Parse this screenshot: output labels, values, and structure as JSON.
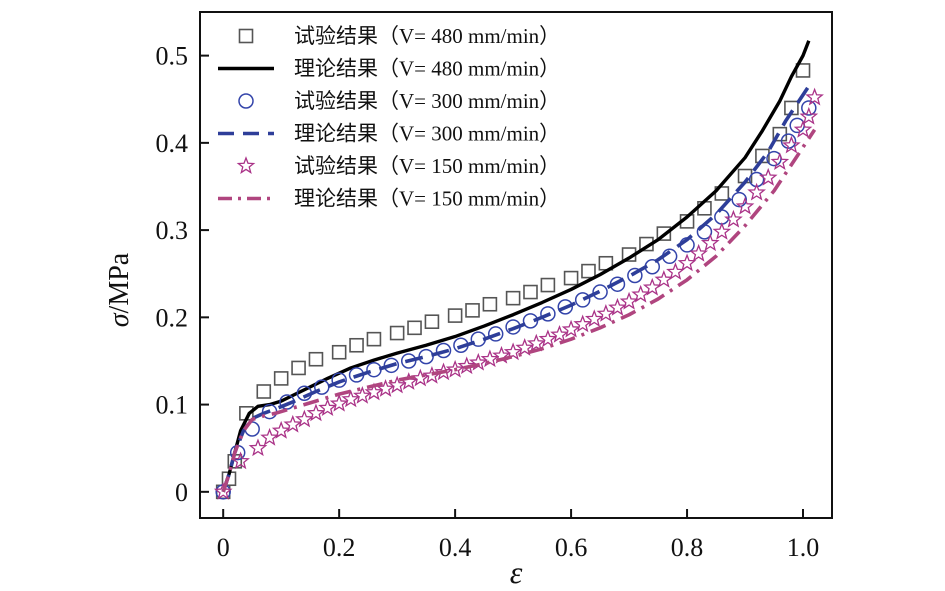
{
  "chart_data": {
    "type": "line",
    "xlabel": "ε",
    "ylabel_symbol": "σ",
    "ylabel_unit": "/MPa",
    "xlim": [
      -0.04,
      1.05
    ],
    "ylim": [
      -0.03,
      0.55
    ],
    "xticks": [
      0,
      0.2,
      0.4,
      0.6,
      0.8,
      1.0
    ],
    "xtick_labels": [
      "0",
      "0.2",
      "0.4",
      "0.6",
      "0.8",
      "1.0"
    ],
    "yticks": [
      0,
      0.1,
      0.2,
      0.3,
      0.4,
      0.5
    ],
    "ytick_labels": [
      "0",
      "0.1",
      "0.2",
      "0.3",
      "0.4",
      "0.5"
    ],
    "legend_position": "top-left",
    "series": [
      {
        "name": "试验结果（V= 480 mm/min）",
        "kind": "markers",
        "marker": "square",
        "color": "#555555",
        "x": [
          0.0,
          0.01,
          0.02,
          0.04,
          0.07,
          0.1,
          0.13,
          0.16,
          0.2,
          0.23,
          0.26,
          0.3,
          0.33,
          0.36,
          0.4,
          0.43,
          0.46,
          0.5,
          0.53,
          0.56,
          0.6,
          0.63,
          0.66,
          0.7,
          0.73,
          0.76,
          0.8,
          0.83,
          0.86,
          0.9,
          0.93,
          0.96,
          0.98,
          1.0
        ],
        "y": [
          0.0,
          0.015,
          0.035,
          0.09,
          0.115,
          0.13,
          0.142,
          0.152,
          0.16,
          0.168,
          0.175,
          0.182,
          0.188,
          0.195,
          0.202,
          0.208,
          0.215,
          0.222,
          0.229,
          0.237,
          0.245,
          0.253,
          0.262,
          0.272,
          0.284,
          0.296,
          0.31,
          0.325,
          0.342,
          0.362,
          0.385,
          0.41,
          0.44,
          0.483
        ]
      },
      {
        "name": "理论结果（V= 480 mm/min）",
        "kind": "line",
        "dash": "solid",
        "color": "#000000",
        "x": [
          0.0,
          0.01,
          0.02,
          0.03,
          0.045,
          0.06,
          0.08,
          0.1,
          0.14,
          0.18,
          0.22,
          0.26,
          0.3,
          0.35,
          0.4,
          0.45,
          0.5,
          0.55,
          0.6,
          0.65,
          0.7,
          0.75,
          0.8,
          0.85,
          0.9,
          0.93,
          0.96,
          0.98,
          1.0,
          1.01
        ],
        "y": [
          0.0,
          0.02,
          0.045,
          0.07,
          0.09,
          0.098,
          0.1,
          0.104,
          0.117,
          0.13,
          0.142,
          0.151,
          0.159,
          0.168,
          0.178,
          0.19,
          0.203,
          0.217,
          0.232,
          0.249,
          0.268,
          0.289,
          0.315,
          0.345,
          0.383,
          0.414,
          0.448,
          0.476,
          0.5,
          0.517
        ]
      },
      {
        "name": "试验结果（V= 300 mm/min）",
        "kind": "markers",
        "marker": "circle",
        "color": "#3344aa",
        "x": [
          0.0,
          0.025,
          0.05,
          0.08,
          0.11,
          0.14,
          0.17,
          0.2,
          0.23,
          0.26,
          0.29,
          0.32,
          0.35,
          0.38,
          0.41,
          0.44,
          0.47,
          0.5,
          0.53,
          0.56,
          0.59,
          0.62,
          0.65,
          0.68,
          0.71,
          0.74,
          0.77,
          0.8,
          0.83,
          0.86,
          0.89,
          0.92,
          0.95,
          0.975,
          0.99,
          1.01
        ],
        "y": [
          0.0,
          0.045,
          0.072,
          0.092,
          0.103,
          0.113,
          0.12,
          0.128,
          0.134,
          0.14,
          0.145,
          0.15,
          0.155,
          0.162,
          0.168,
          0.175,
          0.181,
          0.189,
          0.196,
          0.204,
          0.212,
          0.22,
          0.229,
          0.238,
          0.248,
          0.258,
          0.27,
          0.283,
          0.298,
          0.315,
          0.335,
          0.358,
          0.382,
          0.402,
          0.42,
          0.44
        ]
      },
      {
        "name": "理论结果（V= 300 mm/min）",
        "kind": "line",
        "dash": "dashed",
        "color": "#2e3e99",
        "x": [
          0.0,
          0.01,
          0.02,
          0.035,
          0.05,
          0.07,
          0.09,
          0.12,
          0.16,
          0.2,
          0.25,
          0.3,
          0.35,
          0.4,
          0.45,
          0.5,
          0.55,
          0.6,
          0.65,
          0.7,
          0.75,
          0.8,
          0.85,
          0.9,
          0.94,
          0.97,
          1.0,
          1.01
        ],
        "y": [
          0.0,
          0.02,
          0.045,
          0.07,
          0.084,
          0.09,
          0.095,
          0.103,
          0.115,
          0.126,
          0.137,
          0.147,
          0.155,
          0.164,
          0.175,
          0.187,
          0.2,
          0.214,
          0.23,
          0.247,
          0.266,
          0.289,
          0.318,
          0.355,
          0.39,
          0.425,
          0.455,
          0.465
        ]
      },
      {
        "name": "试验结果（V= 150 mm/min）",
        "kind": "markers",
        "marker": "star",
        "color": "#aa3388",
        "x": [
          0.0,
          0.03,
          0.06,
          0.08,
          0.1,
          0.12,
          0.14,
          0.16,
          0.18,
          0.2,
          0.22,
          0.24,
          0.26,
          0.28,
          0.3,
          0.32,
          0.34,
          0.36,
          0.38,
          0.4,
          0.42,
          0.44,
          0.46,
          0.48,
          0.5,
          0.52,
          0.54,
          0.56,
          0.58,
          0.6,
          0.62,
          0.64,
          0.66,
          0.68,
          0.7,
          0.72,
          0.74,
          0.76,
          0.78,
          0.8,
          0.82,
          0.84,
          0.86,
          0.88,
          0.9,
          0.92,
          0.94,
          0.96,
          0.98,
          1.0,
          1.01,
          1.02
        ],
        "y": [
          0.0,
          0.035,
          0.05,
          0.062,
          0.07,
          0.077,
          0.083,
          0.09,
          0.096,
          0.101,
          0.106,
          0.11,
          0.114,
          0.118,
          0.122,
          0.126,
          0.13,
          0.133,
          0.137,
          0.14,
          0.144,
          0.148,
          0.152,
          0.156,
          0.16,
          0.165,
          0.17,
          0.175,
          0.18,
          0.186,
          0.192,
          0.198,
          0.204,
          0.211,
          0.218,
          0.226,
          0.234,
          0.243,
          0.252,
          0.262,
          0.273,
          0.285,
          0.298,
          0.312,
          0.327,
          0.343,
          0.36,
          0.378,
          0.397,
          0.415,
          0.43,
          0.452
        ]
      },
      {
        "name": "理论结果（V= 150 mm/min）",
        "kind": "line",
        "dash": "dashdot",
        "color": "#b0457f",
        "x": [
          0.0,
          0.01,
          0.02,
          0.035,
          0.05,
          0.07,
          0.09,
          0.12,
          0.16,
          0.2,
          0.25,
          0.3,
          0.35,
          0.4,
          0.45,
          0.5,
          0.55,
          0.6,
          0.65,
          0.7,
          0.75,
          0.8,
          0.85,
          0.9,
          0.95,
          0.99,
          1.02
        ],
        "y": [
          0.0,
          0.02,
          0.045,
          0.07,
          0.083,
          0.087,
          0.09,
          0.096,
          0.104,
          0.112,
          0.12,
          0.128,
          0.134,
          0.14,
          0.147,
          0.155,
          0.164,
          0.175,
          0.188,
          0.203,
          0.221,
          0.243,
          0.27,
          0.305,
          0.345,
          0.385,
          0.415
        ]
      }
    ]
  }
}
